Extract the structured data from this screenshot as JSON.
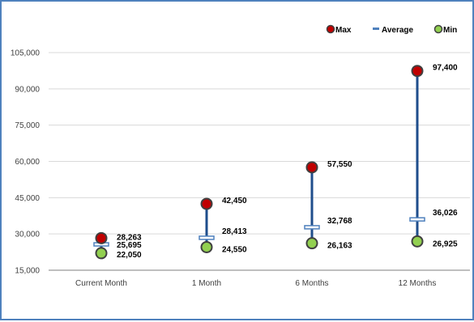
{
  "chart_data": {
    "type": "range",
    "title": "",
    "xlabel": "",
    "ylabel": "",
    "ylim": [
      15000,
      105000
    ],
    "yticks": [
      15000,
      30000,
      45000,
      60000,
      75000,
      90000,
      105000
    ],
    "ytick_labels": [
      "15,000",
      "30,000",
      "45,000",
      "60,000",
      "75,000",
      "90,000",
      "105,000"
    ],
    "grid": true,
    "legend_position": "top-right",
    "categories": [
      "Current Month",
      "1 Month",
      "6 Months",
      "12 Months"
    ],
    "series": [
      {
        "name": "Max",
        "values": [
          28263,
          42450,
          57550,
          97400
        ],
        "labels": [
          "28,263",
          "42,450",
          "57,550",
          "97,400"
        ],
        "color": "#c00000"
      },
      {
        "name": "Average",
        "values": [
          25695,
          28413,
          32768,
          36026
        ],
        "labels": [
          "25,695",
          "28,413",
          "32,768",
          "36,026"
        ],
        "color": "#4f81bd"
      },
      {
        "name": "Min",
        "values": [
          22050,
          24550,
          26163,
          26925
        ],
        "labels": [
          "22,050",
          "24,550",
          "26,163",
          "26,925"
        ],
        "color": "#92d050"
      }
    ],
    "range_line_color": "#1f4e8c"
  }
}
